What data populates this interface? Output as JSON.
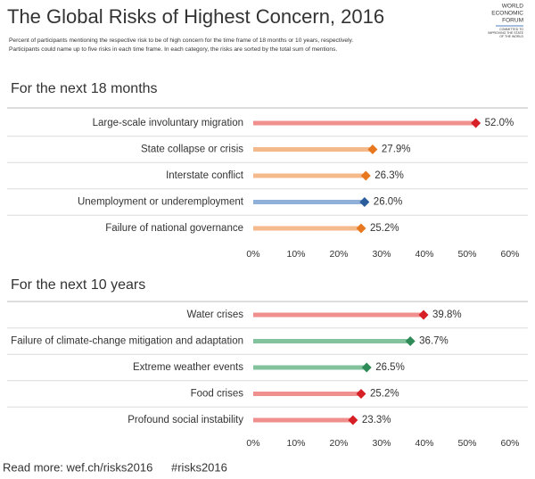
{
  "title": "The Global Risks of Highest Concern, 2016",
  "subtitle": [
    "Percent of participants mentioning the respective risk to be of high concern for the time frame of 18 months or 10 years, respectively.",
    "Participants could name up to five risks in each time frame. In each category, the risks are sorted by the total sum of mentions."
  ],
  "logo": [
    "WORLD",
    "ECONOMIC",
    "FORUM"
  ],
  "logo_tagline": [
    "COMMITTED TO",
    "IMPROVING THE STATE",
    "OF THE WORLD"
  ],
  "footer": [
    "Read more: wef.ch/risks2016",
    "#risks2016"
  ],
  "chart_data": [
    {
      "type": "bar",
      "orientation": "horizontal",
      "title": "For the next 18 months",
      "categories": [
        "Large-scale involuntary migration",
        "State collapse or crisis",
        "Interstate conflict",
        "Unemployment or underemployment",
        "Failure of national governance"
      ],
      "values": [
        52.0,
        27.9,
        26.3,
        26.0,
        25.2
      ],
      "value_labels": [
        "52.0%",
        "27.9%",
        "26.3%",
        "26.0%",
        "25.2%"
      ],
      "colors": [
        "#f0908e",
        "#f4ba8c",
        "#f4ba8c",
        "#8fb0d8",
        "#f4ba8c"
      ],
      "marker_colors": [
        "#d71f26",
        "#e8781f",
        "#e8781f",
        "#2b5c9c",
        "#e8781f"
      ],
      "xlim": [
        0,
        60
      ],
      "xticks": [
        {
          "value": 0,
          "label": "0%"
        },
        {
          "value": 10,
          "label": "10%"
        },
        {
          "value": 20,
          "label": "20%"
        },
        {
          "value": 30,
          "label": "30%"
        },
        {
          "value": 40,
          "label": "40%"
        },
        {
          "value": 50,
          "label": "50%"
        },
        {
          "value": 60,
          "label": "60%"
        }
      ]
    },
    {
      "type": "bar",
      "orientation": "horizontal",
      "title": "For the next 10 years",
      "categories": [
        "Water crises",
        "Failure of climate-change mitigation and adaptation",
        "Extreme weather events",
        "Food crises",
        "Profound social instability"
      ],
      "values": [
        39.8,
        36.7,
        26.5,
        25.2,
        23.3
      ],
      "value_labels": [
        "39.8%",
        "36.7%",
        "26.5%",
        "25.2%",
        "23.3%"
      ],
      "colors": [
        "#f0908e",
        "#82c39e",
        "#82c39e",
        "#f0908e",
        "#f0908e"
      ],
      "marker_colors": [
        "#d71f26",
        "#2e8a57",
        "#2e8a57",
        "#d71f26",
        "#d71f26"
      ],
      "xlim": [
        0,
        60
      ],
      "xticks": [
        {
          "value": 0,
          "label": "0%"
        },
        {
          "value": 10,
          "label": "10%"
        },
        {
          "value": 20,
          "label": "20%"
        },
        {
          "value": 30,
          "label": "30%"
        },
        {
          "value": 40,
          "label": "40%"
        },
        {
          "value": 50,
          "label": "50%"
        },
        {
          "value": 60,
          "label": "60%"
        }
      ]
    }
  ]
}
